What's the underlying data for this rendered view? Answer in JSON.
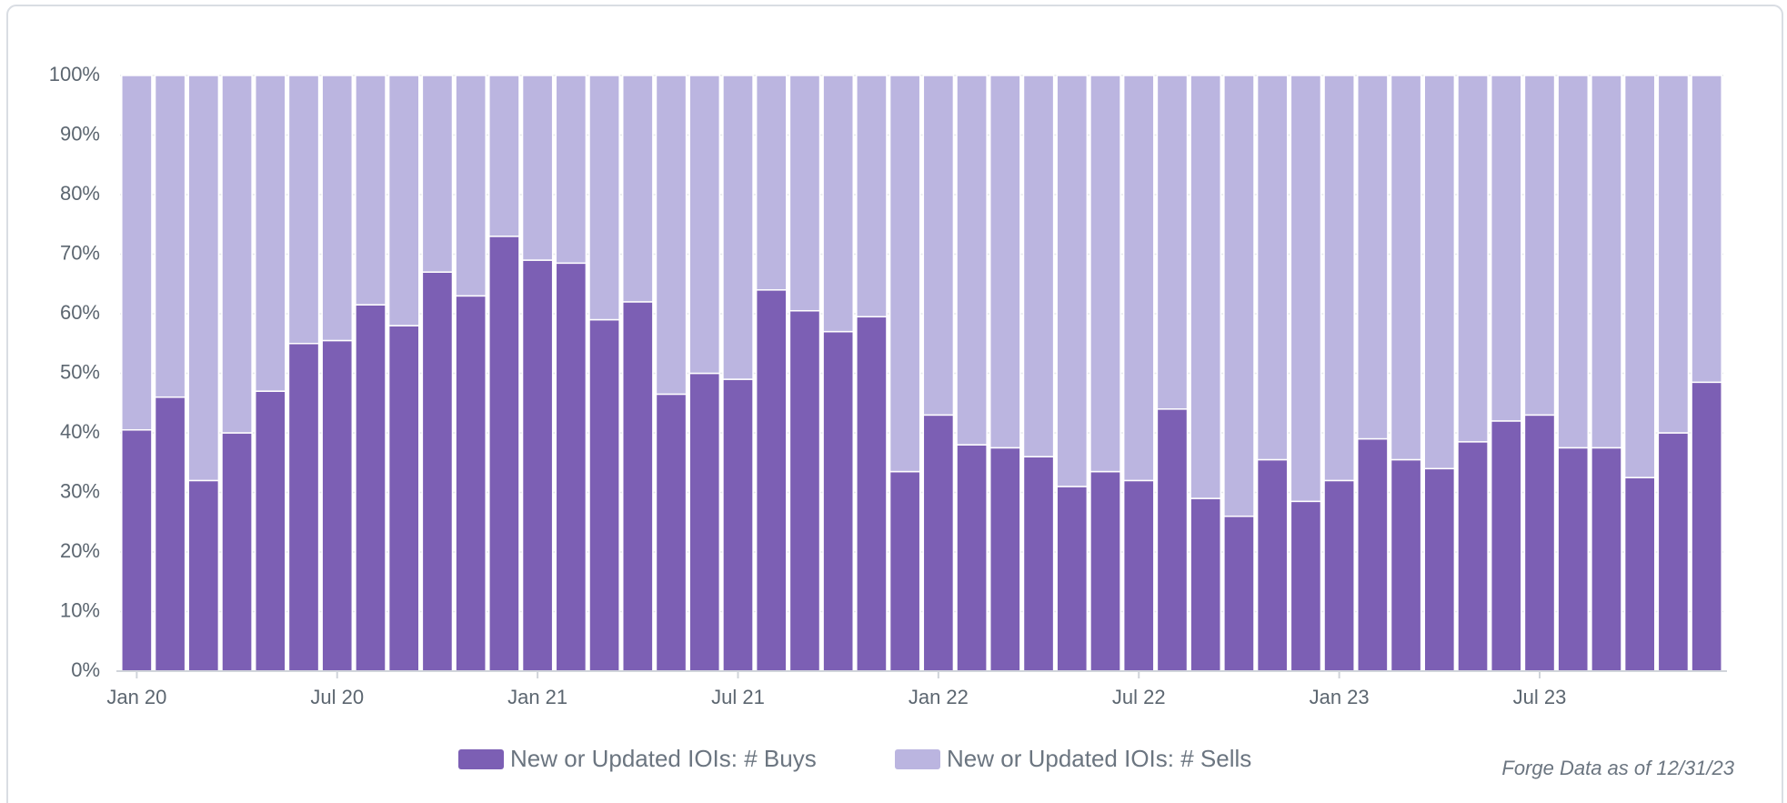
{
  "chart_data": {
    "type": "stacked_bar",
    "note": "Forge Data as of 12/31/23",
    "categories": [
      "Jan 20",
      null,
      null,
      null,
      null,
      null,
      "Jul 20",
      null,
      null,
      null,
      null,
      null,
      "Jan 21",
      null,
      null,
      null,
      null,
      null,
      "Jul 21",
      null,
      null,
      null,
      null,
      null,
      "Jan 22",
      null,
      null,
      null,
      null,
      null,
      "Jul 22",
      null,
      null,
      null,
      null,
      null,
      "Jan 23",
      null,
      null,
      null,
      null,
      null,
      "Jul 23",
      null,
      null,
      null,
      null,
      null
    ],
    "series": [
      {
        "name": "New or Updated IOIs: # Buys",
        "color": "#7c5fb4",
        "values": [
          40.5,
          46,
          32,
          40,
          47,
          55,
          55.5,
          61.5,
          58,
          67,
          63,
          73,
          69,
          68.5,
          59,
          62,
          46.5,
          50,
          49,
          64,
          60.5,
          57,
          59.5,
          33.5,
          43,
          38,
          37.5,
          36,
          31,
          33.5,
          32,
          44,
          29,
          26,
          35.5,
          28.5,
          32,
          39,
          35.5,
          34,
          38.5,
          42,
          43,
          37.5,
          37.5,
          32.5,
          40,
          48.5
        ]
      },
      {
        "name": "New or Updated IOIs: # Sells",
        "color": "#bbb5e0",
        "values": [
          59.5,
          54,
          68,
          60,
          53,
          45,
          44.5,
          38.5,
          42,
          33,
          37,
          27,
          31,
          31.5,
          41,
          38,
          53.5,
          50,
          51,
          36,
          39.5,
          43,
          40.5,
          66.5,
          57,
          62,
          62.5,
          64,
          69,
          66.5,
          68,
          56,
          71,
          74,
          64.5,
          71.5,
          68,
          61,
          64.5,
          66,
          61.5,
          58,
          57,
          62.5,
          62.5,
          67.5,
          60,
          51.5
        ]
      }
    ],
    "ylim": [
      0,
      100
    ],
    "yticks": [
      {
        "value": 0,
        "label": "0%"
      },
      {
        "value": 10,
        "label": "10%"
      },
      {
        "value": 20,
        "label": "20%"
      },
      {
        "value": 30,
        "label": "30%"
      },
      {
        "value": 40,
        "label": "40%"
      },
      {
        "value": 50,
        "label": "50%"
      },
      {
        "value": 60,
        "label": "60%"
      },
      {
        "value": 70,
        "label": "70%"
      },
      {
        "value": 80,
        "label": "80%"
      },
      {
        "value": 90,
        "label": "90%"
      },
      {
        "value": 100,
        "label": "100%"
      }
    ],
    "grid": true
  }
}
